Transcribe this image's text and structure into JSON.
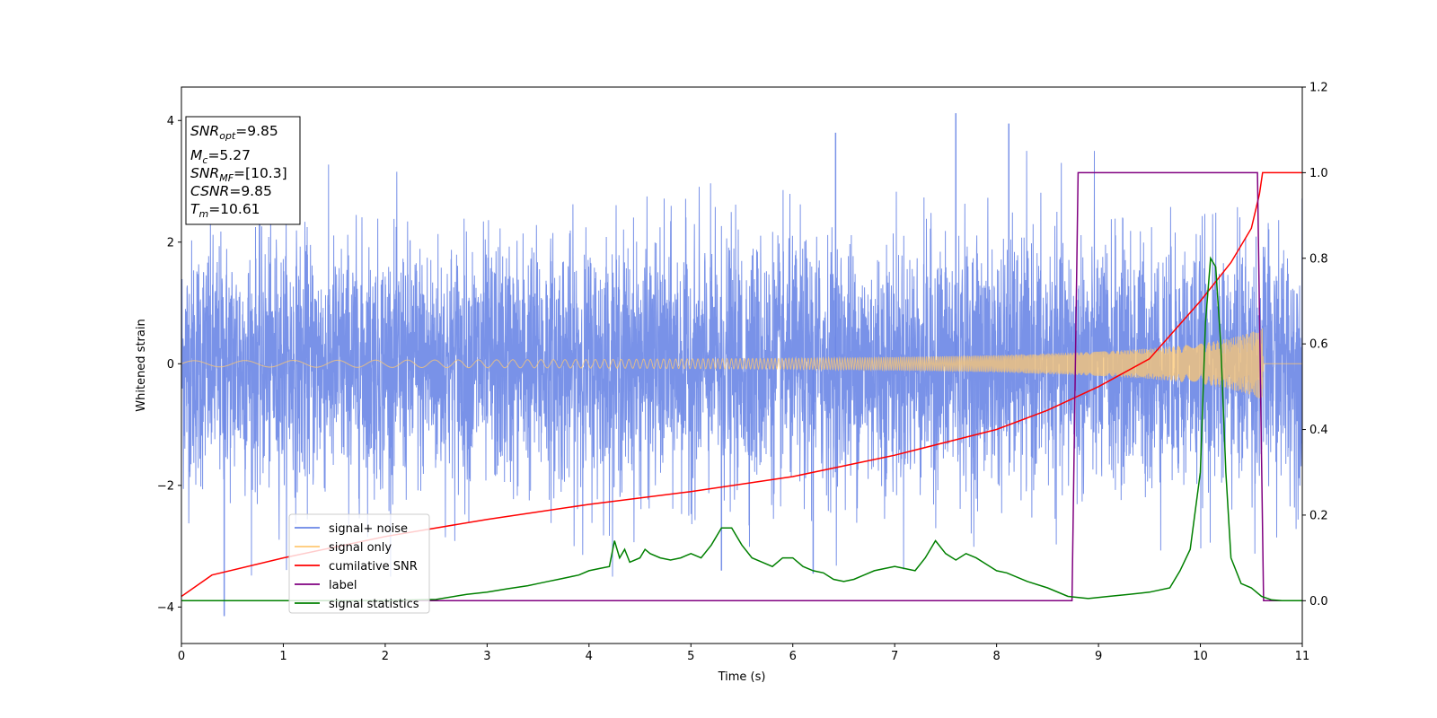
{
  "chart_data": {
    "type": "line",
    "xlabel": "Time (s)",
    "ylabel": "Whitened strain",
    "xlim": [
      0,
      11
    ],
    "ylim_left": [
      -4.6,
      4.55
    ],
    "ylim_right": [
      -0.1,
      1.2
    ],
    "x_ticks": [
      "0",
      "1",
      "2",
      "3",
      "4",
      "5",
      "6",
      "7",
      "8",
      "9",
      "10",
      "11"
    ],
    "y_left_ticks": [
      "−4",
      "−2",
      "0",
      "2",
      "4"
    ],
    "y_right_ticks": [
      "0.0",
      "0.2",
      "0.4",
      "0.6",
      "0.8",
      "1.0",
      "1.2"
    ],
    "grid": false,
    "legend_position": "lower-left",
    "info_box": {
      "snr_opt_label": "SNR",
      "snr_opt_sub": "opt",
      "snr_opt_value": "=9.85",
      "mc_label": "M",
      "mc_sub": "c",
      "mc_value": "=5.27",
      "snr_mf_label": "SNR",
      "snr_mf_sub": "MF",
      "snr_mf_value": "=[10.3]",
      "csnr_label": "CSNR",
      "csnr_value": "=9.85",
      "tm_label": "T",
      "tm_sub": "m",
      "tm_value": "=10.61"
    },
    "series": [
      {
        "name": "signal+ noise",
        "color": "#6a86e6",
        "axis": "left",
        "amplitude_std": 1.0,
        "noise_extremes": [
          [
            0.42,
            -4.15
          ],
          [
            7.6,
            4.12
          ],
          [
            8.12,
            3.95
          ],
          [
            6.42,
            3.8
          ],
          [
            5.3,
            -3.4
          ],
          [
            6.2,
            -3.45
          ]
        ]
      },
      {
        "name": "signal only",
        "color": "#ffc872",
        "axis": "left",
        "envelope": [
          [
            0,
            0.05
          ],
          [
            2,
            0.06
          ],
          [
            4,
            0.07
          ],
          [
            6,
            0.09
          ],
          [
            7,
            0.11
          ],
          [
            8,
            0.14
          ],
          [
            9,
            0.2
          ],
          [
            9.5,
            0.25
          ],
          [
            10,
            0.33
          ],
          [
            10.3,
            0.42
          ],
          [
            10.5,
            0.52
          ],
          [
            10.61,
            0.6
          ],
          [
            10.62,
            0.0
          ],
          [
            11,
            0.0
          ]
        ]
      },
      {
        "name": "cumilative SNR",
        "color": "#ff0000",
        "axis": "right",
        "x": [
          0,
          0.3,
          1,
          2,
          3,
          4,
          5,
          6,
          7,
          8,
          8.5,
          9,
          9.5,
          10,
          10.3,
          10.5,
          10.58,
          10.61,
          11
        ],
        "y": [
          0.01,
          0.06,
          0.1,
          0.15,
          0.19,
          0.225,
          0.255,
          0.29,
          0.34,
          0.4,
          0.445,
          0.5,
          0.565,
          0.7,
          0.79,
          0.87,
          0.95,
          1.0,
          1.0
        ]
      },
      {
        "name": "label",
        "color": "#800080",
        "axis": "right",
        "x": [
          0,
          8.74,
          8.8,
          10.56,
          10.62,
          11
        ],
        "y": [
          0,
          0,
          1,
          1,
          0,
          0
        ]
      },
      {
        "name": "signal statistics",
        "color": "#008000",
        "axis": "right",
        "x": [
          0,
          1,
          2,
          2.5,
          2.8,
          3.0,
          3.2,
          3.4,
          3.5,
          3.6,
          3.7,
          3.8,
          3.9,
          4.0,
          4.1,
          4.2,
          4.25,
          4.3,
          4.35,
          4.4,
          4.5,
          4.55,
          4.6,
          4.7,
          4.8,
          4.9,
          5.0,
          5.1,
          5.2,
          5.3,
          5.4,
          5.5,
          5.6,
          5.7,
          5.8,
          5.9,
          6.0,
          6.1,
          6.2,
          6.3,
          6.4,
          6.5,
          6.6,
          6.7,
          6.8,
          6.9,
          7.0,
          7.1,
          7.2,
          7.3,
          7.4,
          7.5,
          7.6,
          7.7,
          7.8,
          7.9,
          8.0,
          8.1,
          8.3,
          8.5,
          8.7,
          8.9,
          9.1,
          9.3,
          9.5,
          9.7,
          9.8,
          9.9,
          10.0,
          10.05,
          10.1,
          10.15,
          10.2,
          10.25,
          10.3,
          10.4,
          10.5,
          10.6,
          10.7,
          10.8,
          11
        ],
        "y": [
          0,
          0,
          0,
          0.003,
          0.015,
          0.02,
          0.028,
          0.035,
          0.04,
          0.045,
          0.05,
          0.055,
          0.06,
          0.07,
          0.075,
          0.08,
          0.14,
          0.1,
          0.12,
          0.09,
          0.1,
          0.12,
          0.11,
          0.1,
          0.095,
          0.1,
          0.11,
          0.1,
          0.13,
          0.17,
          0.17,
          0.13,
          0.1,
          0.09,
          0.08,
          0.1,
          0.1,
          0.08,
          0.07,
          0.065,
          0.05,
          0.045,
          0.05,
          0.06,
          0.07,
          0.075,
          0.08,
          0.075,
          0.07,
          0.1,
          0.14,
          0.11,
          0.095,
          0.11,
          0.1,
          0.085,
          0.07,
          0.065,
          0.045,
          0.03,
          0.01,
          0.005,
          0.01,
          0.015,
          0.02,
          0.03,
          0.07,
          0.12,
          0.3,
          0.65,
          0.8,
          0.78,
          0.6,
          0.3,
          0.1,
          0.04,
          0.03,
          0.01,
          0.002,
          0.0,
          0.0
        ]
      }
    ]
  }
}
